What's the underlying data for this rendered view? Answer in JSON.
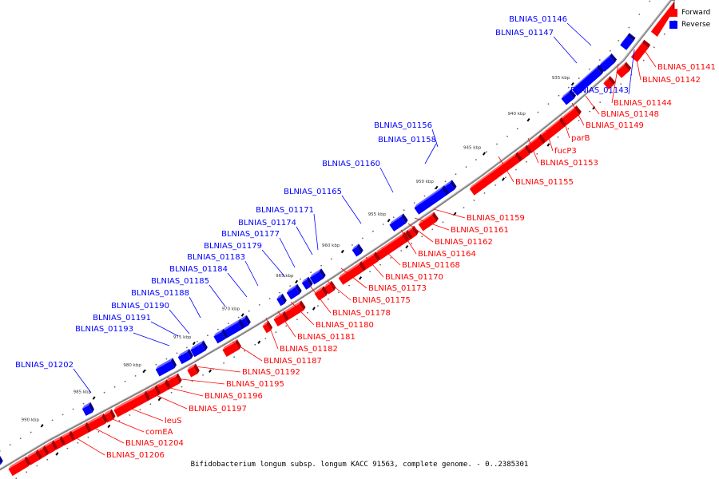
{
  "caption": "Bifidobacterium longum subsp. longum KACC 91563, complete genome. - 0..2385301",
  "legend": {
    "forward": {
      "label": "Forward",
      "color": "#ff0000"
    },
    "reverse": {
      "label": "Reverse",
      "color": "#0000ff"
    }
  },
  "colors": {
    "forward": "#ff0000",
    "reverse": "#0000ff",
    "backbone": "#7f7f7f"
  },
  "ticks": [
    "935 kbp",
    "940 kbp",
    "945 kbp",
    "950 kbp",
    "955 kbp",
    "960 kbp",
    "965 kbp",
    "970 kbp",
    "975 kbp",
    "980 kbp",
    "985 kbp",
    "990 kbp"
  ],
  "labels": {
    "reverse": [
      "BLNIAS_01146",
      "BLNIAS_01147",
      "BLNIAS_01143",
      "BLNIAS_01156",
      "BLNIAS_01158",
      "BLNIAS_01160",
      "BLNIAS_01165",
      "BLNIAS_01171",
      "BLNIAS_01174",
      "BLNIAS_01177",
      "BLNIAS_01179",
      "BLNIAS_01183",
      "BLNIAS_01184",
      "BLNIAS_01185",
      "BLNIAS_01188",
      "BLNIAS_01190",
      "BLNIAS_01191",
      "BLNIAS_01193",
      "BLNIAS_01202"
    ],
    "forward": [
      "BLNIAS_01141",
      "BLNIAS_01142",
      "BLNIAS_01144",
      "BLNIAS_01148",
      "BLNIAS_01149",
      "parB",
      "fucP3",
      "BLNIAS_01153",
      "BLNIAS_01155",
      "BLNIAS_01159",
      "BLNIAS_01161",
      "BLNIAS_01162",
      "BLNIAS_01164",
      "BLNIAS_01168",
      "BLNIAS_01170",
      "BLNIAS_01173",
      "BLNIAS_01175",
      "BLNIAS_01178",
      "BLNIAS_01180",
      "BLNIAS_01181",
      "BLNIAS_01182",
      "BLNIAS_01187",
      "BLNIAS_01192",
      "BLNIAS_01195",
      "BLNIAS_01196",
      "BLNIAS_01197",
      "leuS",
      "comEA",
      "BLNIAS_01204",
      "BLNIAS_01206"
    ]
  }
}
